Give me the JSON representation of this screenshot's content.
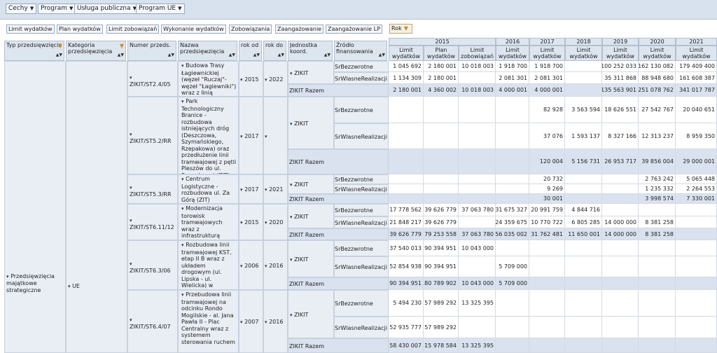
{
  "filters": [
    "Cechy",
    "Program",
    "Usługa publiczna",
    "Program UE"
  ],
  "measures": [
    "Limit wydatków",
    "Plan wydatków",
    "Limit zobowiązań",
    "Wykonanie wydatków",
    "Zobowiązania",
    "Zaangażowanie",
    "Zaangażowanie LP"
  ],
  "rok_button": "Rok",
  "row_headers": {
    "typ": "Typ przedsięwzięcia",
    "kategoria": "Kategoria przedsięwzięcia",
    "numer": "Numer przeds.",
    "nazwa": "Nazwa przedsięwzięcia",
    "rok_od": "rok od",
    "rok_do": "rok do",
    "jednostka": "Jednostka koord.",
    "zrodlo": "Źródło finansowania"
  },
  "years": [
    "2015",
    "2016",
    "2017",
    "2018",
    "2019",
    "2020",
    "2021"
  ],
  "col_headers": [
    "Limit wydatków",
    "Plan wydatków",
    "Limit zobowiązań",
    "Limit wydatków",
    "Limit wydatków",
    "Limit wydatków",
    "Limit wydatków",
    "Limit wydatków",
    "Limit wydatków"
  ],
  "typ_value": "Przedsięwzięcia majątkowe strategiczne",
  "kategoria_value": "UE",
  "projects": [
    {
      "numer": "ZIKIT/ST2.4/05",
      "nazwa": "Budowa Trasy Łagiewnickiej (węzeł \"Ruczaj\"- węzeł \"Łagiewniki\") wraz z linią tramwajową",
      "rok_od": "2015",
      "rok_do": "2022",
      "jednostka": "ZIKIT",
      "razem": "ZIKIT Razem",
      "rows": [
        {
          "src": "SrBezzwrotne",
          "v": [
            "1 045 692",
            "2 180 001",
            "10 018 003",
            "1 918 700",
            "1 918 700",
            "",
            "100 252 033",
            "162 130 082",
            "179 409 400"
          ]
        },
        {
          "src": "SrWlasneRealizacji",
          "v": [
            "1 134 309",
            "2 180 001",
            "",
            "2 081 301",
            "2 081 301",
            "",
            "35 311 868",
            "88 948 680",
            "161 608 387"
          ]
        },
        {
          "src": "",
          "v": [
            "2 180 001",
            "4 360 002",
            "10 018 003",
            "4 000 001",
            "4 000 001",
            "",
            "135 563 901",
            "251 078 762",
            "341 017 787"
          ]
        }
      ]
    },
    {
      "numer": "ZIKIT/ST5.2/RR",
      "nazwa": "Park Technologiczny Branice - rozbudowa istniejących dróg (Deszczowa, Szymańskiego, Rzepakowa) oraz przedłużenie linii tramwajowej z pętli Pleszów do ul. Rzepakowej (ZIT)",
      "rok_od": "2017",
      "rok_do": "",
      "jednostka": "ZIKIT",
      "razem": "ZIKIT Razem",
      "rows": [
        {
          "src": "SrBezzwrotne",
          "v": [
            "",
            "",
            "",
            "",
            "82 928",
            "3 563 594",
            "18 626 551",
            "27 542 767",
            "20 040 651"
          ]
        },
        {
          "src": "SrWlasneRealizacji",
          "v": [
            "",
            "",
            "",
            "",
            "37 076",
            "1 593 137",
            "8 327 166",
            "12 313 237",
            "8 959 350"
          ]
        },
        {
          "src": "",
          "v": [
            "",
            "",
            "",
            "",
            "120 004",
            "5 156 731",
            "26 953 717",
            "39 856 004",
            "29 000 001"
          ]
        }
      ]
    },
    {
      "numer": "ZIKIT/ST5.3/RR",
      "nazwa": "Centrum Logistyczne - rozbudowa ul. Za Górą (ZIT)",
      "rok_od": "2017",
      "rok_do": "2021",
      "jednostka": "ZIKIT",
      "razem": "ZIKIT Razem",
      "rows": [
        {
          "src": "SrBezzwrotne",
          "v": [
            "",
            "",
            "",
            "",
            "20 732",
            "",
            "",
            "2 763 242",
            "5 065 448"
          ]
        },
        {
          "src": "SrWlasneRealizacji",
          "v": [
            "",
            "",
            "",
            "",
            "9 269",
            "",
            "",
            "1 235 332",
            "2 264 553"
          ]
        },
        {
          "src": "",
          "v": [
            "",
            "",
            "",
            "",
            "30 001",
            "",
            "",
            "3 998 574",
            "7 330 001"
          ]
        }
      ]
    },
    {
      "numer": "ZIKIT/ST6.11/12",
      "nazwa": "Modernizacja torowisk tramwajowych wraz z infrastrukturą towarzyszącą",
      "rok_od": "2015",
      "rok_do": "2020",
      "jednostka": "ZIKIT",
      "razem": "ZIKIT Razem",
      "rows": [
        {
          "src": "SrBezzwrotne",
          "v": [
            "17 778 562",
            "39 626 779",
            "37 063 780",
            "31 675 327",
            "20 991 759",
            "4 844 716",
            "",
            "",
            ""
          ]
        },
        {
          "src": "SrWlasneRealizacji",
          "v": [
            "21 848 217",
            "39 626 779",
            "",
            "24 359 675",
            "10 770 722",
            "6 805 285",
            "14 000 000",
            "8 381 258",
            ""
          ]
        },
        {
          "src": "",
          "v": [
            "39 626 779",
            "79 253 558",
            "37 063 780",
            "56 035 002",
            "31 762 481",
            "11 650 001",
            "14 000 000",
            "8 381 258",
            ""
          ]
        }
      ]
    },
    {
      "numer": "ZIKIT/ST6.3/06",
      "nazwa": "Rozbudowa linii tramwajowej KST, etap II B wraz z układem drogowym (ul. Lipska - ul. Wielicka) w Krakowie",
      "rok_od": "2006",
      "rok_do": "2016",
      "jednostka": "ZIKIT",
      "razem": "ZIKIT Razem",
      "rows": [
        {
          "src": "SrBezzwrotne",
          "v": [
            "37 540 013",
            "90 394 951",
            "10 043 000",
            "",
            "",
            "",
            "",
            "",
            ""
          ]
        },
        {
          "src": "SrWlasneRealizacji",
          "v": [
            "52 854 938",
            "90 394 951",
            "",
            "5 709 000",
            "",
            "",
            "",
            "",
            ""
          ]
        },
        {
          "src": "",
          "v": [
            "90 394 951",
            "180 789 902",
            "10 043 000",
            "5 709 000",
            "",
            "",
            "",
            "",
            ""
          ]
        }
      ]
    },
    {
      "numer": "ZIKIT/ST6.4/07",
      "nazwa": "Przebudowa linii tramwajowej na odcinku Rondo Mogilskie - al. Jana Pawła II - Plac Centralny wraz z systemem sterowania ruchem",
      "rok_od": "2007",
      "rok_do": "2016",
      "jednostka": "ZIKIT",
      "razem": "ZIKIT Razem",
      "rows": [
        {
          "src": "SrBezzwrotne",
          "v": [
            "5 494 230",
            "57 989 292",
            "13 325 395",
            "",
            "",
            "",
            "",
            "",
            ""
          ]
        },
        {
          "src": "SrWlasneRealizacji",
          "v": [
            "52 935 777",
            "57 989 292",
            "",
            "",
            "",
            "",
            "",
            "",
            ""
          ]
        },
        {
          "src": "",
          "v": [
            "58 430 007",
            "115 978 584",
            "13 325 395",
            "",
            "",
            "",
            "",
            "",
            ""
          ]
        }
      ]
    }
  ]
}
